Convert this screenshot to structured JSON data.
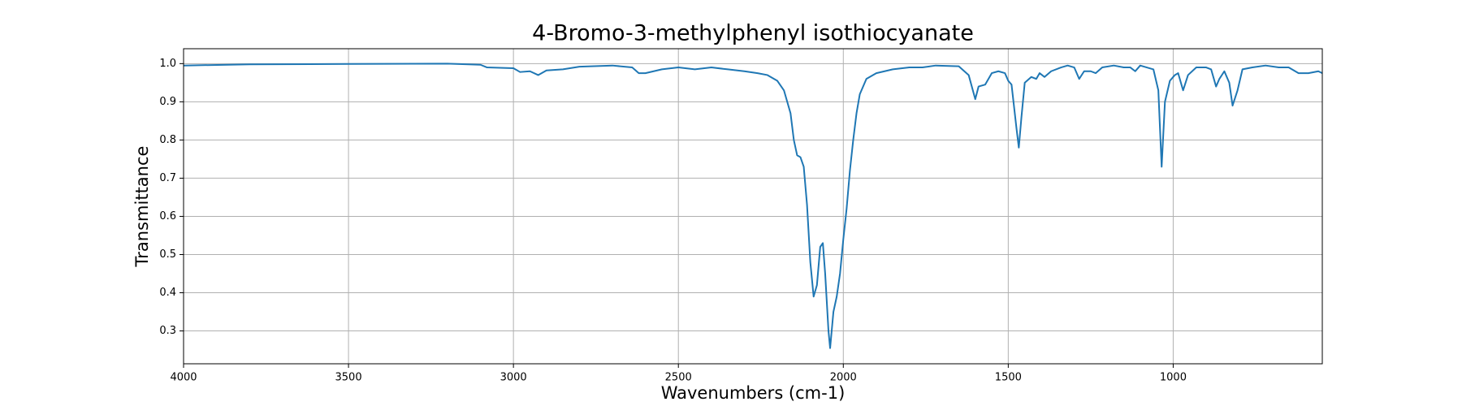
{
  "chart_data": {
    "type": "line",
    "title": "4-Bromo-3-methylphenyl isothiocyanate",
    "x_label": "Wavenumbers (cm-1)",
    "y_label": "Transmittance",
    "color": "#1f77b4",
    "grid": true,
    "xlim": [
      4000,
      548
    ],
    "ylim": [
      0.214,
      1.039
    ],
    "xticks": [
      4000,
      3500,
      3000,
      2500,
      2000,
      1500,
      1000
    ],
    "yticks": [
      0.3,
      0.4,
      0.5,
      0.6,
      0.7,
      0.8,
      0.9,
      {
        "value": 1,
        "label": "1.0"
      }
    ],
    "x": [
      4000,
      3800,
      3500,
      3200,
      3100,
      3080,
      3000,
      2980,
      2950,
      2925,
      2900,
      2850,
      2800,
      2700,
      2640,
      2620,
      2600,
      2550,
      2500,
      2450,
      2400,
      2350,
      2300,
      2260,
      2230,
      2200,
      2180,
      2160,
      2150,
      2140,
      2130,
      2120,
      2110,
      2100,
      2090,
      2080,
      2070,
      2062,
      2055,
      2045,
      2040,
      2030,
      2020,
      2010,
      2000,
      1990,
      1980,
      1970,
      1960,
      1950,
      1930,
      1900,
      1850,
      1800,
      1760,
      1720,
      1650,
      1620,
      1600,
      1590,
      1570,
      1550,
      1530,
      1510,
      1500,
      1490,
      1475,
      1468,
      1460,
      1450,
      1430,
      1415,
      1405,
      1390,
      1370,
      1340,
      1320,
      1300,
      1285,
      1270,
      1250,
      1235,
      1215,
      1180,
      1150,
      1130,
      1115,
      1100,
      1060,
      1045,
      1035,
      1025,
      1010,
      995,
      985,
      970,
      955,
      930,
      900,
      885,
      870,
      860,
      845,
      830,
      820,
      805,
      790,
      760,
      720,
      680,
      650,
      620,
      590,
      560,
      548
    ],
    "values": [
      0.995,
      0.998,
      0.999,
      1.0,
      0.997,
      0.99,
      0.988,
      0.978,
      0.98,
      0.97,
      0.982,
      0.985,
      0.992,
      0.995,
      0.99,
      0.975,
      0.975,
      0.985,
      0.99,
      0.985,
      0.99,
      0.985,
      0.98,
      0.975,
      0.97,
      0.955,
      0.93,
      0.87,
      0.8,
      0.76,
      0.755,
      0.73,
      0.63,
      0.48,
      0.39,
      0.42,
      0.52,
      0.53,
      0.45,
      0.3,
      0.255,
      0.35,
      0.39,
      0.45,
      0.54,
      0.62,
      0.72,
      0.8,
      0.87,
      0.92,
      0.96,
      0.975,
      0.985,
      0.99,
      0.99,
      0.995,
      0.993,
      0.97,
      0.907,
      0.94,
      0.945,
      0.975,
      0.98,
      0.975,
      0.955,
      0.945,
      0.83,
      0.78,
      0.86,
      0.95,
      0.965,
      0.96,
      0.975,
      0.965,
      0.98,
      0.99,
      0.995,
      0.99,
      0.96,
      0.98,
      0.98,
      0.975,
      0.99,
      0.995,
      0.99,
      0.99,
      0.98,
      0.995,
      0.985,
      0.93,
      0.73,
      0.9,
      0.955,
      0.97,
      0.975,
      0.93,
      0.97,
      0.99,
      0.99,
      0.985,
      0.94,
      0.96,
      0.98,
      0.95,
      0.89,
      0.93,
      0.985,
      0.99,
      0.995,
      0.99,
      0.99,
      0.975,
      0.975,
      0.98,
      0.975
    ]
  }
}
